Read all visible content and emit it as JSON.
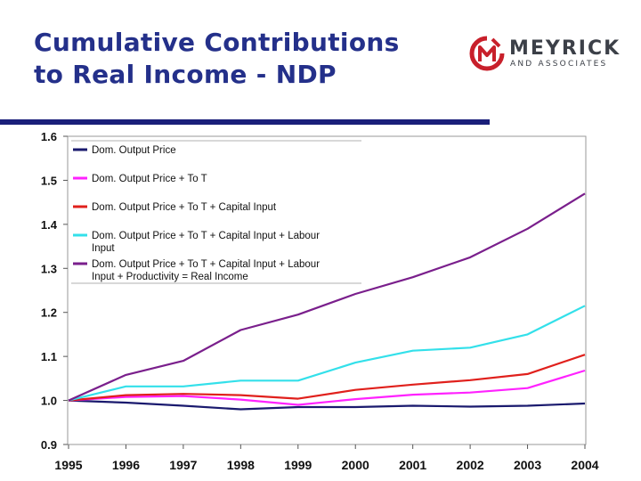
{
  "title": {
    "line1": "Cumulative Contributions",
    "line2": "to Real Income - NDP"
  },
  "logo": {
    "name": "MEYRICK",
    "tagline": "AND ASSOCIATES"
  },
  "colors": {
    "title": "#24308a",
    "rule": "#1a1f7a",
    "logo_mark": "#c8202b"
  },
  "chart_data": {
    "type": "line",
    "categories": [
      "1995",
      "1996",
      "1997",
      "1998",
      "1999",
      "2000",
      "2001",
      "2002",
      "2003",
      "2004"
    ],
    "ylim": [
      0.9,
      1.6
    ],
    "yticks": [
      "1.6",
      "1.5",
      "1.4",
      "1.3",
      "1.2",
      "1.1",
      "1.0",
      "0.9"
    ],
    "ytick_values": [
      1.6,
      1.5,
      1.4,
      1.3,
      1.2,
      1.1,
      1.0,
      0.9
    ],
    "grid": false,
    "legend": "top-left",
    "xlabel": "",
    "ylabel": "",
    "series": [
      {
        "name": "Dom. Output Price",
        "color": "#1a1a6e",
        "values": [
          1.0,
          0.995,
          0.988,
          0.98,
          0.985,
          0.985,
          0.988,
          0.986,
          0.988,
          0.993
        ]
      },
      {
        "name": "Dom. Output Price + ToT",
        "color": "#ff22ff",
        "values": [
          1.0,
          1.008,
          1.01,
          1.002,
          0.99,
          1.003,
          1.013,
          1.018,
          1.028,
          1.068
        ]
      },
      {
        "name": "Dom. Output Price + ToT + Capital Input",
        "color": "#e0201c",
        "values": [
          1.0,
          1.012,
          1.015,
          1.012,
          1.004,
          1.024,
          1.036,
          1.046,
          1.06,
          1.104
        ]
      },
      {
        "name": "Dom. Output Price + ToT + Capital Input + Labour Input",
        "color": "#33e0ea",
        "values": [
          1.0,
          1.032,
          1.032,
          1.045,
          1.045,
          1.086,
          1.113,
          1.12,
          1.15,
          1.215
        ]
      },
      {
        "name": "Dom. Output Price + ToT + Capital Input + Labour Input + Productivity = Real Income",
        "color": "#7a1f8c",
        "values": [
          1.0,
          1.058,
          1.09,
          1.16,
          1.195,
          1.242,
          1.28,
          1.325,
          1.39,
          1.47
        ]
      }
    ]
  }
}
